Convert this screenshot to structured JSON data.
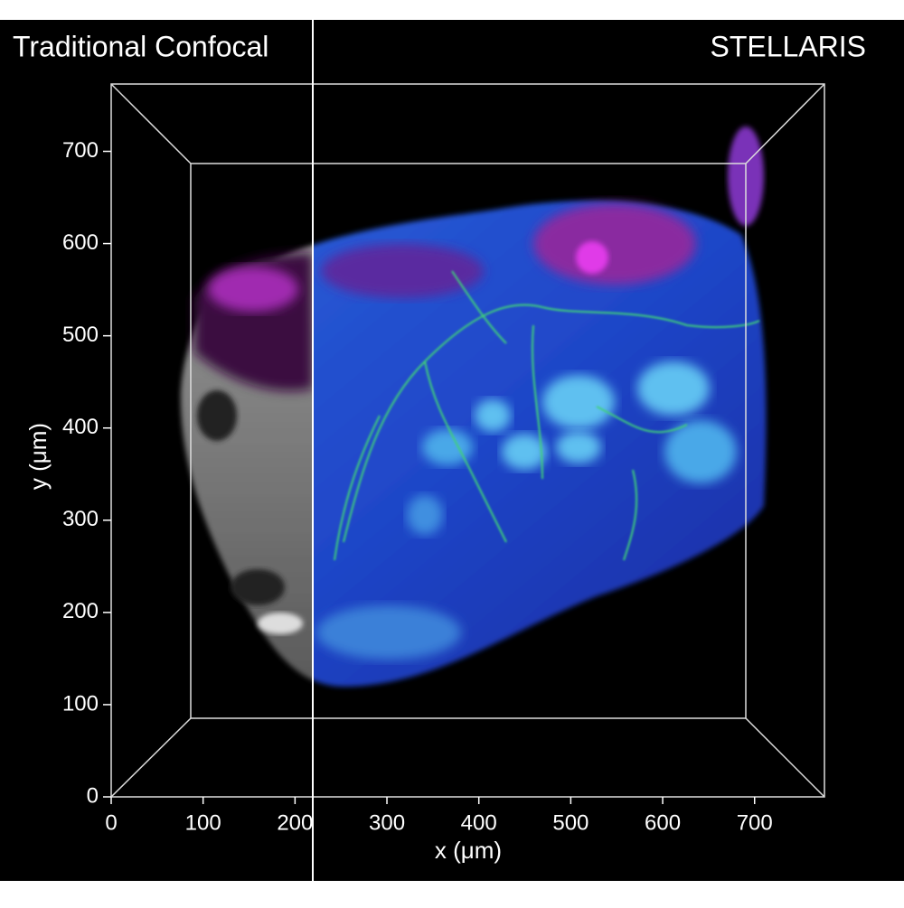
{
  "chart_data": {
    "type": "image",
    "left_label": "Traditional Confocal",
    "right_label": "STELLARIS",
    "xlabel": "x (μm)",
    "ylabel": "y (μm)",
    "xlim": [
      0,
      776
    ],
    "ylim": [
      0,
      773
    ],
    "xticks": [
      0,
      100,
      200,
      300,
      400,
      500,
      600,
      700
    ],
    "yticks": [
      0,
      100,
      200,
      300,
      400,
      500,
      600,
      700
    ]
  }
}
